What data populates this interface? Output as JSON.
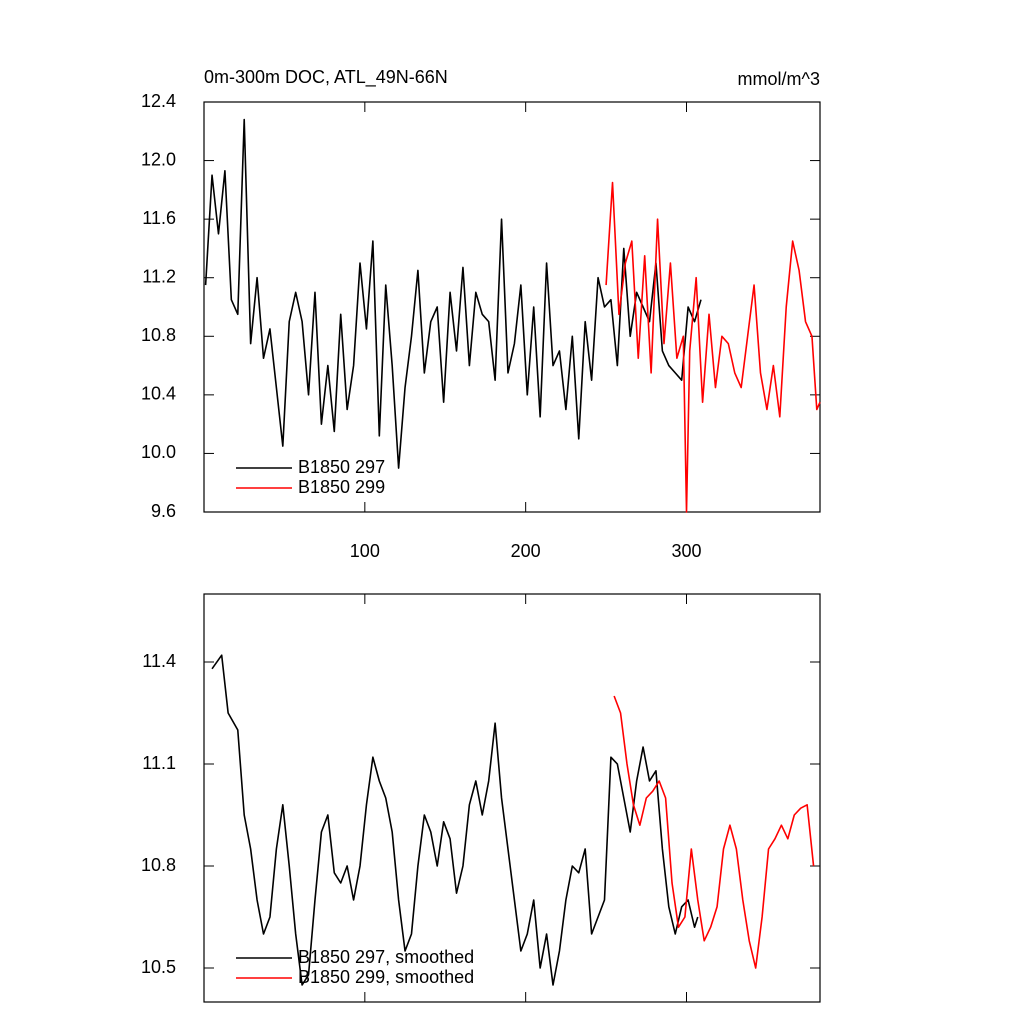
{
  "chart_data": [
    {
      "type": "line",
      "title": "0m-300m DOC, ATL_49N-66N",
      "subtitle": "mmol/m^3",
      "xlim": [
        0,
        383
      ],
      "xticks": [
        100,
        200,
        300
      ],
      "xtick_labels": true,
      "ylim": [
        9.6,
        12.4
      ],
      "yticks": [
        9.6,
        {
          "value": 10.0,
          "label": "10.0"
        },
        10.4,
        10.8,
        11.2,
        11.6,
        {
          "value": 12.0,
          "label": "12.0"
        },
        12.4
      ],
      "legend": "lower left",
      "series": [
        {
          "name": "B1850 297",
          "color": "#000000",
          "x": [
            1,
            5,
            9,
            13,
            17,
            21,
            25,
            29,
            33,
            37,
            41,
            45,
            49,
            53,
            57,
            61,
            65,
            69,
            73,
            77,
            81,
            85,
            89,
            93,
            97,
            101,
            105,
            109,
            113,
            117,
            121,
            125,
            129,
            133,
            137,
            141,
            145,
            149,
            153,
            157,
            161,
            165,
            169,
            173,
            177,
            181,
            185,
            189,
            193,
            197,
            201,
            205,
            209,
            213,
            217,
            221,
            225,
            229,
            233,
            237,
            241,
            245,
            249,
            253,
            257,
            261,
            265,
            269,
            273,
            277,
            281,
            285,
            289,
            293,
            297,
            301,
            305,
            309
          ],
          "values": [
            11.15,
            11.9,
            11.5,
            11.93,
            11.05,
            10.95,
            12.28,
            10.75,
            11.2,
            10.65,
            10.85,
            10.45,
            10.05,
            10.9,
            11.1,
            10.9,
            10.4,
            11.1,
            10.2,
            10.6,
            10.15,
            10.95,
            10.3,
            10.6,
            11.3,
            10.85,
            11.45,
            10.12,
            11.15,
            10.6,
            9.9,
            10.45,
            10.8,
            11.25,
            10.55,
            10.9,
            11.0,
            10.35,
            11.1,
            10.7,
            11.27,
            10.6,
            11.1,
            10.95,
            10.9,
            10.5,
            11.6,
            10.55,
            10.75,
            11.15,
            10.4,
            11.0,
            10.25,
            11.3,
            10.6,
            10.7,
            10.3,
            10.8,
            10.1,
            10.9,
            10.5,
            11.2,
            11.0,
            11.05,
            10.6,
            11.4,
            10.8,
            11.1,
            11.0,
            10.9,
            11.3,
            10.7,
            10.6,
            10.55,
            10.5,
            11.0,
            10.9,
            11.05
          ]
        },
        {
          "name": "B1850 299",
          "color": "#ff0000",
          "x": [
            250,
            254,
            258,
            262,
            266,
            270,
            274,
            278,
            282,
            286,
            290,
            294,
            298,
            300,
            302,
            306,
            310,
            314,
            318,
            322,
            326,
            330,
            334,
            338,
            342,
            346,
            350,
            354,
            358,
            362,
            366,
            370,
            374,
            378,
            381,
            383
          ],
          "values": [
            11.15,
            11.85,
            10.95,
            11.3,
            11.45,
            10.65,
            11.35,
            10.55,
            11.6,
            10.75,
            11.3,
            10.65,
            10.8,
            9.6,
            10.7,
            11.2,
            10.35,
            10.95,
            10.45,
            10.8,
            10.75,
            10.55,
            10.45,
            10.8,
            11.15,
            10.55,
            10.3,
            10.6,
            10.25,
            11.0,
            11.45,
            11.25,
            10.9,
            10.8,
            10.3,
            10.35
          ]
        }
      ]
    },
    {
      "type": "line",
      "xlim": [
        0,
        383
      ],
      "xticks": [
        100,
        200,
        300
      ],
      "xtick_labels": false,
      "ylim": [
        10.4,
        11.6
      ],
      "yticks": [
        10.5,
        10.8,
        11.1,
        11.4
      ],
      "legend": "lower left",
      "series": [
        {
          "name": "B1850 297, smoothed",
          "color": "#000000",
          "x": [
            5,
            11,
            15,
            21,
            25,
            29,
            33,
            37,
            41,
            45,
            49,
            53,
            57,
            61,
            65,
            69,
            73,
            77,
            81,
            85,
            89,
            93,
            97,
            101,
            105,
            109,
            113,
            117,
            121,
            125,
            129,
            133,
            137,
            141,
            145,
            149,
            153,
            157,
            161,
            165,
            169,
            173,
            177,
            181,
            185,
            189,
            193,
            197,
            201,
            205,
            209,
            213,
            217,
            221,
            225,
            229,
            233,
            237,
            241,
            245,
            249,
            253,
            257,
            261,
            265,
            269,
            273,
            277,
            281,
            285,
            289,
            293,
            297,
            301,
            305,
            307
          ],
          "values": [
            11.38,
            11.42,
            11.25,
            11.2,
            10.95,
            10.85,
            10.7,
            10.6,
            10.65,
            10.85,
            10.98,
            10.8,
            10.6,
            10.45,
            10.48,
            10.7,
            10.9,
            10.95,
            10.78,
            10.75,
            10.8,
            10.7,
            10.8,
            10.98,
            11.12,
            11.05,
            11.0,
            10.9,
            10.7,
            10.55,
            10.6,
            10.8,
            10.95,
            10.9,
            10.8,
            10.93,
            10.88,
            10.72,
            10.8,
            10.98,
            11.05,
            10.95,
            11.05,
            11.22,
            11.0,
            10.85,
            10.7,
            10.55,
            10.6,
            10.7,
            10.5,
            10.6,
            10.45,
            10.55,
            10.7,
            10.8,
            10.78,
            10.85,
            10.6,
            10.65,
            10.7,
            11.12,
            11.1,
            11.0,
            10.9,
            11.05,
            11.15,
            11.05,
            11.08,
            10.85,
            10.68,
            10.6,
            10.68,
            10.7,
            10.62,
            10.65
          ]
        },
        {
          "name": "B1850 299, smoothed",
          "color": "#ff0000",
          "x": [
            255,
            259,
            263,
            267,
            271,
            275,
            279,
            283,
            287,
            291,
            295,
            299,
            303,
            307,
            311,
            315,
            319,
            323,
            327,
            331,
            335,
            339,
            343,
            347,
            351,
            355,
            359,
            363,
            367,
            371,
            375,
            379
          ],
          "values": [
            11.3,
            11.25,
            11.1,
            10.98,
            10.92,
            11.0,
            11.02,
            11.05,
            11.0,
            10.75,
            10.62,
            10.65,
            10.85,
            10.7,
            10.58,
            10.62,
            10.68,
            10.85,
            10.92,
            10.85,
            10.7,
            10.58,
            10.5,
            10.65,
            10.85,
            10.88,
            10.92,
            10.88,
            10.95,
            10.97,
            10.98,
            10.8
          ]
        }
      ]
    }
  ]
}
